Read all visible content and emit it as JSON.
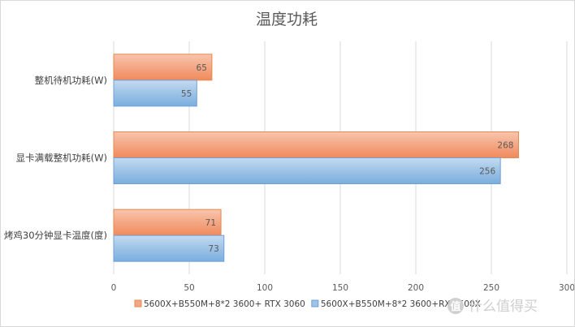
{
  "chart_data": {
    "type": "bar",
    "orientation": "horizontal",
    "title": "温度功耗",
    "categories": [
      "整机待机功耗(W)",
      "显卡满载整机功耗(W)",
      "烤鸡30分钟显卡温度(度)"
    ],
    "series": [
      {
        "name": "5600X+B550M+8*2 3600+ RTX 3060",
        "values": [
          65,
          268,
          71
        ],
        "color": "#f4a784"
      },
      {
        "name": "5600X+B550M+8*2 3600+RX 5600X",
        "values": [
          55,
          256,
          73
        ],
        "color": "#9dc3e6"
      }
    ],
    "xlim": [
      0,
      300
    ],
    "xticks": [
      0,
      50,
      100,
      150,
      200,
      250,
      300
    ],
    "xlabel": "",
    "ylabel": "",
    "grid": true,
    "legend_position": "bottom"
  },
  "watermark": {
    "icon": "zhi-logo-icon",
    "text": "什么值得买"
  }
}
